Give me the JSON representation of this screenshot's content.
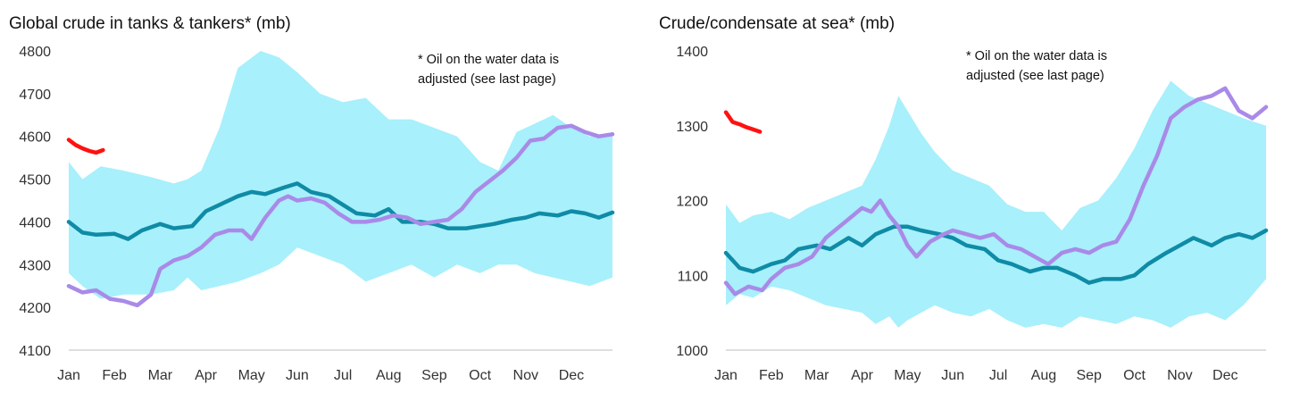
{
  "colors": {
    "band": "#a8f0fb",
    "teal": "#0f8ba6",
    "purple": "#a98ae8",
    "red": "#ff1111",
    "axis": "#bfbfbf"
  },
  "chart_data": [
    {
      "type": "area",
      "title": "Global crude in tanks & tankers* (mb)",
      "note_lines": [
        "* Oil on the water data is",
        "adjusted (see last page)"
      ],
      "xlabels": [
        "Jan",
        "Feb",
        "Mar",
        "Apr",
        "May",
        "Jun",
        "Jul",
        "Aug",
        "Sep",
        "Oct",
        "Nov",
        "Dec"
      ],
      "xlim": [
        1,
        12.9
      ],
      "ylim": [
        4100,
        4800
      ],
      "yticks": [
        4100,
        4200,
        4300,
        4400,
        4500,
        4600,
        4700,
        4800
      ],
      "range_band": {
        "x": [
          1,
          1.3,
          1.7,
          2.2,
          2.8,
          3.3,
          3.6,
          3.9,
          4.3,
          4.7,
          5.2,
          5.6,
          6.0,
          6.5,
          7.0,
          7.5,
          8.0,
          8.5,
          9.0,
          9.5,
          10.0,
          10.4,
          10.8,
          11.2,
          11.6,
          12.0,
          12.4,
          12.9
        ],
        "upper": [
          4540,
          4500,
          4530,
          4520,
          4505,
          4490,
          4500,
          4520,
          4620,
          4760,
          4800,
          4785,
          4750,
          4700,
          4680,
          4690,
          4640,
          4640,
          4620,
          4600,
          4540,
          4520,
          4610,
          4630,
          4650,
          4620,
          4600,
          4610
        ],
        "lower": [
          4280,
          4250,
          4220,
          4230,
          4230,
          4240,
          4270,
          4240,
          4250,
          4260,
          4280,
          4300,
          4340,
          4320,
          4300,
          4260,
          4280,
          4300,
          4270,
          4300,
          4280,
          4300,
          4300,
          4280,
          4270,
          4260,
          4250,
          4270
        ]
      },
      "series": [
        {
          "color": "#0f8ba6",
          "x": [
            1,
            1.3,
            1.6,
            2.0,
            2.3,
            2.6,
            3.0,
            3.3,
            3.7,
            4.0,
            4.3,
            4.7,
            5.0,
            5.3,
            5.7,
            6.0,
            6.3,
            6.7,
            7.0,
            7.3,
            7.7,
            8.0,
            8.3,
            8.7,
            9.0,
            9.3,
            9.7,
            10.0,
            10.3,
            10.7,
            11.0,
            11.3,
            11.7,
            12.0,
            12.3,
            12.6,
            12.9
          ],
          "y": [
            4400,
            4375,
            4370,
            4372,
            4360,
            4380,
            4395,
            4385,
            4390,
            4425,
            4440,
            4460,
            4470,
            4465,
            4480,
            4490,
            4470,
            4460,
            4440,
            4420,
            4415,
            4430,
            4400,
            4400,
            4395,
            4385,
            4385,
            4390,
            4395,
            4405,
            4410,
            4420,
            4415,
            4425,
            4420,
            4410,
            4422
          ]
        },
        {
          "color": "#a98ae8",
          "x": [
            1,
            1.3,
            1.6,
            1.9,
            2.2,
            2.5,
            2.8,
            3.0,
            3.3,
            3.6,
            3.9,
            4.2,
            4.5,
            4.8,
            5.0,
            5.3,
            5.6,
            5.8,
            6.0,
            6.3,
            6.6,
            6.9,
            7.2,
            7.5,
            7.8,
            8.1,
            8.4,
            8.7,
            9.0,
            9.3,
            9.6,
            9.9,
            10.2,
            10.5,
            10.8,
            11.1,
            11.4,
            11.7,
            12.0,
            12.3,
            12.6,
            12.9
          ],
          "y": [
            4250,
            4235,
            4240,
            4220,
            4215,
            4205,
            4230,
            4290,
            4310,
            4320,
            4340,
            4370,
            4380,
            4380,
            4360,
            4410,
            4450,
            4460,
            4450,
            4455,
            4445,
            4420,
            4400,
            4400,
            4405,
            4415,
            4410,
            4395,
            4400,
            4405,
            4430,
            4470,
            4495,
            4520,
            4550,
            4590,
            4595,
            4620,
            4625,
            4610,
            4600,
            4605
          ]
        },
        {
          "color": "#ff1111",
          "x": [
            1,
            1.15,
            1.3,
            1.45,
            1.6,
            1.75
          ],
          "y": [
            4592,
            4580,
            4572,
            4566,
            4562,
            4568
          ]
        }
      ]
    },
    {
      "type": "area",
      "title": "Crude/condensate at sea* (mb)",
      "note_lines": [
        "* Oil on the water data is",
        "adjusted (see last page)"
      ],
      "xlabels": [
        "Jan",
        "Feb",
        "Mar",
        "Apr",
        "May",
        "Jun",
        "Jul",
        "Aug",
        "Sep",
        "Oct",
        "Nov",
        "Dec"
      ],
      "xlim": [
        1,
        12.9
      ],
      "ylim": [
        1000,
        1400
      ],
      "yticks": [
        1000,
        1100,
        1200,
        1300,
        1400
      ],
      "range_band": {
        "x": [
          1,
          1.3,
          1.6,
          2.0,
          2.4,
          2.8,
          3.2,
          3.6,
          4.0,
          4.3,
          4.6,
          4.8,
          5.0,
          5.3,
          5.6,
          6.0,
          6.4,
          6.8,
          7.2,
          7.6,
          8.0,
          8.4,
          8.8,
          9.2,
          9.6,
          10.0,
          10.4,
          10.8,
          11.2,
          11.6,
          12.0,
          12.4,
          12.9
        ],
        "upper": [
          1195,
          1170,
          1180,
          1185,
          1175,
          1190,
          1200,
          1210,
          1220,
          1255,
          1300,
          1340,
          1320,
          1290,
          1265,
          1240,
          1230,
          1220,
          1195,
          1185,
          1185,
          1160,
          1190,
          1200,
          1230,
          1270,
          1320,
          1360,
          1340,
          1330,
          1320,
          1310,
          1300
        ],
        "lower": [
          1060,
          1075,
          1070,
          1085,
          1080,
          1070,
          1060,
          1055,
          1050,
          1035,
          1045,
          1030,
          1040,
          1050,
          1060,
          1050,
          1045,
          1055,
          1040,
          1030,
          1035,
          1030,
          1045,
          1040,
          1035,
          1045,
          1040,
          1030,
          1045,
          1050,
          1040,
          1060,
          1095
        ]
      },
      "series": [
        {
          "color": "#0f8ba6",
          "x": [
            1,
            1.3,
            1.6,
            2.0,
            2.3,
            2.6,
            3.0,
            3.3,
            3.7,
            4.0,
            4.3,
            4.7,
            5.0,
            5.3,
            5.7,
            6.0,
            6.3,
            6.7,
            7.0,
            7.3,
            7.7,
            8.0,
            8.3,
            8.7,
            9.0,
            9.3,
            9.7,
            10.0,
            10.3,
            10.7,
            11.0,
            11.3,
            11.7,
            12.0,
            12.3,
            12.6,
            12.9
          ],
          "y": [
            1130,
            1110,
            1105,
            1115,
            1120,
            1135,
            1140,
            1135,
            1150,
            1140,
            1155,
            1165,
            1165,
            1160,
            1155,
            1150,
            1140,
            1135,
            1120,
            1115,
            1105,
            1110,
            1110,
            1100,
            1090,
            1095,
            1095,
            1100,
            1115,
            1130,
            1140,
            1150,
            1140,
            1150,
            1155,
            1150,
            1160
          ]
        },
        {
          "color": "#a98ae8",
          "x": [
            1,
            1.2,
            1.5,
            1.8,
            2.0,
            2.3,
            2.6,
            2.9,
            3.2,
            3.5,
            3.8,
            4.0,
            4.2,
            4.4,
            4.6,
            4.8,
            5.0,
            5.2,
            5.5,
            5.8,
            6.0,
            6.3,
            6.6,
            6.9,
            7.2,
            7.5,
            7.8,
            8.1,
            8.4,
            8.7,
            9.0,
            9.3,
            9.6,
            9.9,
            10.2,
            10.5,
            10.8,
            11.1,
            11.4,
            11.7,
            12.0,
            12.3,
            12.6,
            12.9
          ],
          "y": [
            1090,
            1075,
            1085,
            1080,
            1095,
            1110,
            1115,
            1125,
            1150,
            1165,
            1180,
            1190,
            1185,
            1200,
            1180,
            1165,
            1140,
            1125,
            1145,
            1155,
            1160,
            1155,
            1150,
            1155,
            1140,
            1135,
            1125,
            1115,
            1130,
            1135,
            1130,
            1140,
            1145,
            1175,
            1220,
            1260,
            1310,
            1325,
            1335,
            1340,
            1350,
            1320,
            1310,
            1325
          ]
        },
        {
          "color": "#ff1111",
          "x": [
            1,
            1.15,
            1.3,
            1.45,
            1.6,
            1.75
          ],
          "y": [
            1318,
            1305,
            1302,
            1298,
            1295,
            1292
          ]
        }
      ]
    }
  ]
}
